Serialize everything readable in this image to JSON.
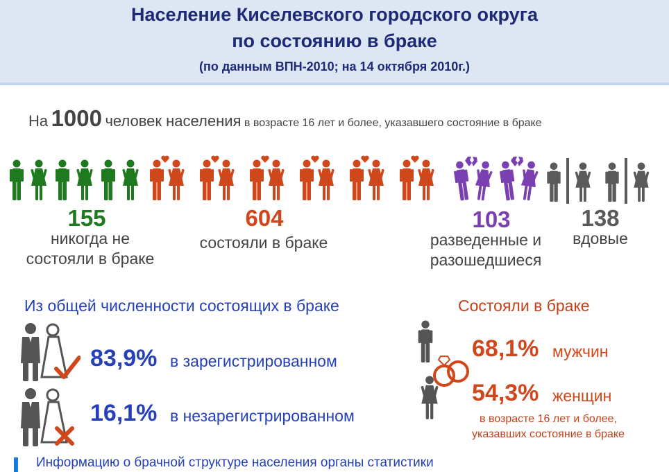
{
  "header": {
    "title_line1": "Население Киселевского городского округа",
    "title_line2": "по состоянию в браке",
    "subtitle": "(по данным ВПН-2010; на 14 октября 2010г.)"
  },
  "intro": {
    "prefix": "На",
    "number": "1000",
    "middle": "человек населения",
    "suffix": "в возрасте 16 лет и более, указавшего состояние в браке"
  },
  "groups": [
    {
      "value": "155",
      "label_line1": "никогда не",
      "label_line2": "состояли в браке",
      "color": "#1f7a1f"
    },
    {
      "value": "604",
      "label_line1": "состояли в браке",
      "label_line2": "",
      "color": "#d0471c"
    },
    {
      "value": "103",
      "label_line1": "разведенные и",
      "label_line2": "разошедшиеся",
      "color": "#7a3fb0"
    },
    {
      "value": "138",
      "label_line1": "вдовые",
      "label_line2": "",
      "color": "#5a5a5a"
    }
  ],
  "married_structure": {
    "title": "Из общей численности состоящих в браке",
    "registered": {
      "percent": "83,9%",
      "label": "в зарегистрированном"
    },
    "unregistered": {
      "percent": "16,1%",
      "label": "в незарегистрированном"
    }
  },
  "married_share": {
    "title": "Состояли в браке",
    "men": {
      "percent": "68,1%",
      "label": "мужчин"
    },
    "women": {
      "percent": "54,3%",
      "label": "женщин"
    },
    "note_line1": "в возрасте 16 лет и более,",
    "note_line2": "указавших состояние в браке"
  },
  "footer": {
    "text": "Информацию о брачной структуре населения органы статистики"
  },
  "colors": {
    "title_blue": "#1f2a77",
    "accent_blue": "#2540b8",
    "accent_orange": "#c8401a",
    "green": "#1f7a1f",
    "purple": "#7a3fb0",
    "grey": "#5a5a5a"
  },
  "icons": [
    "man-icon",
    "woman-icon",
    "couple-heart-icon",
    "broken-heart-icon",
    "groom-bride-icon",
    "check-icon",
    "cross-icon",
    "rings-icon"
  ]
}
